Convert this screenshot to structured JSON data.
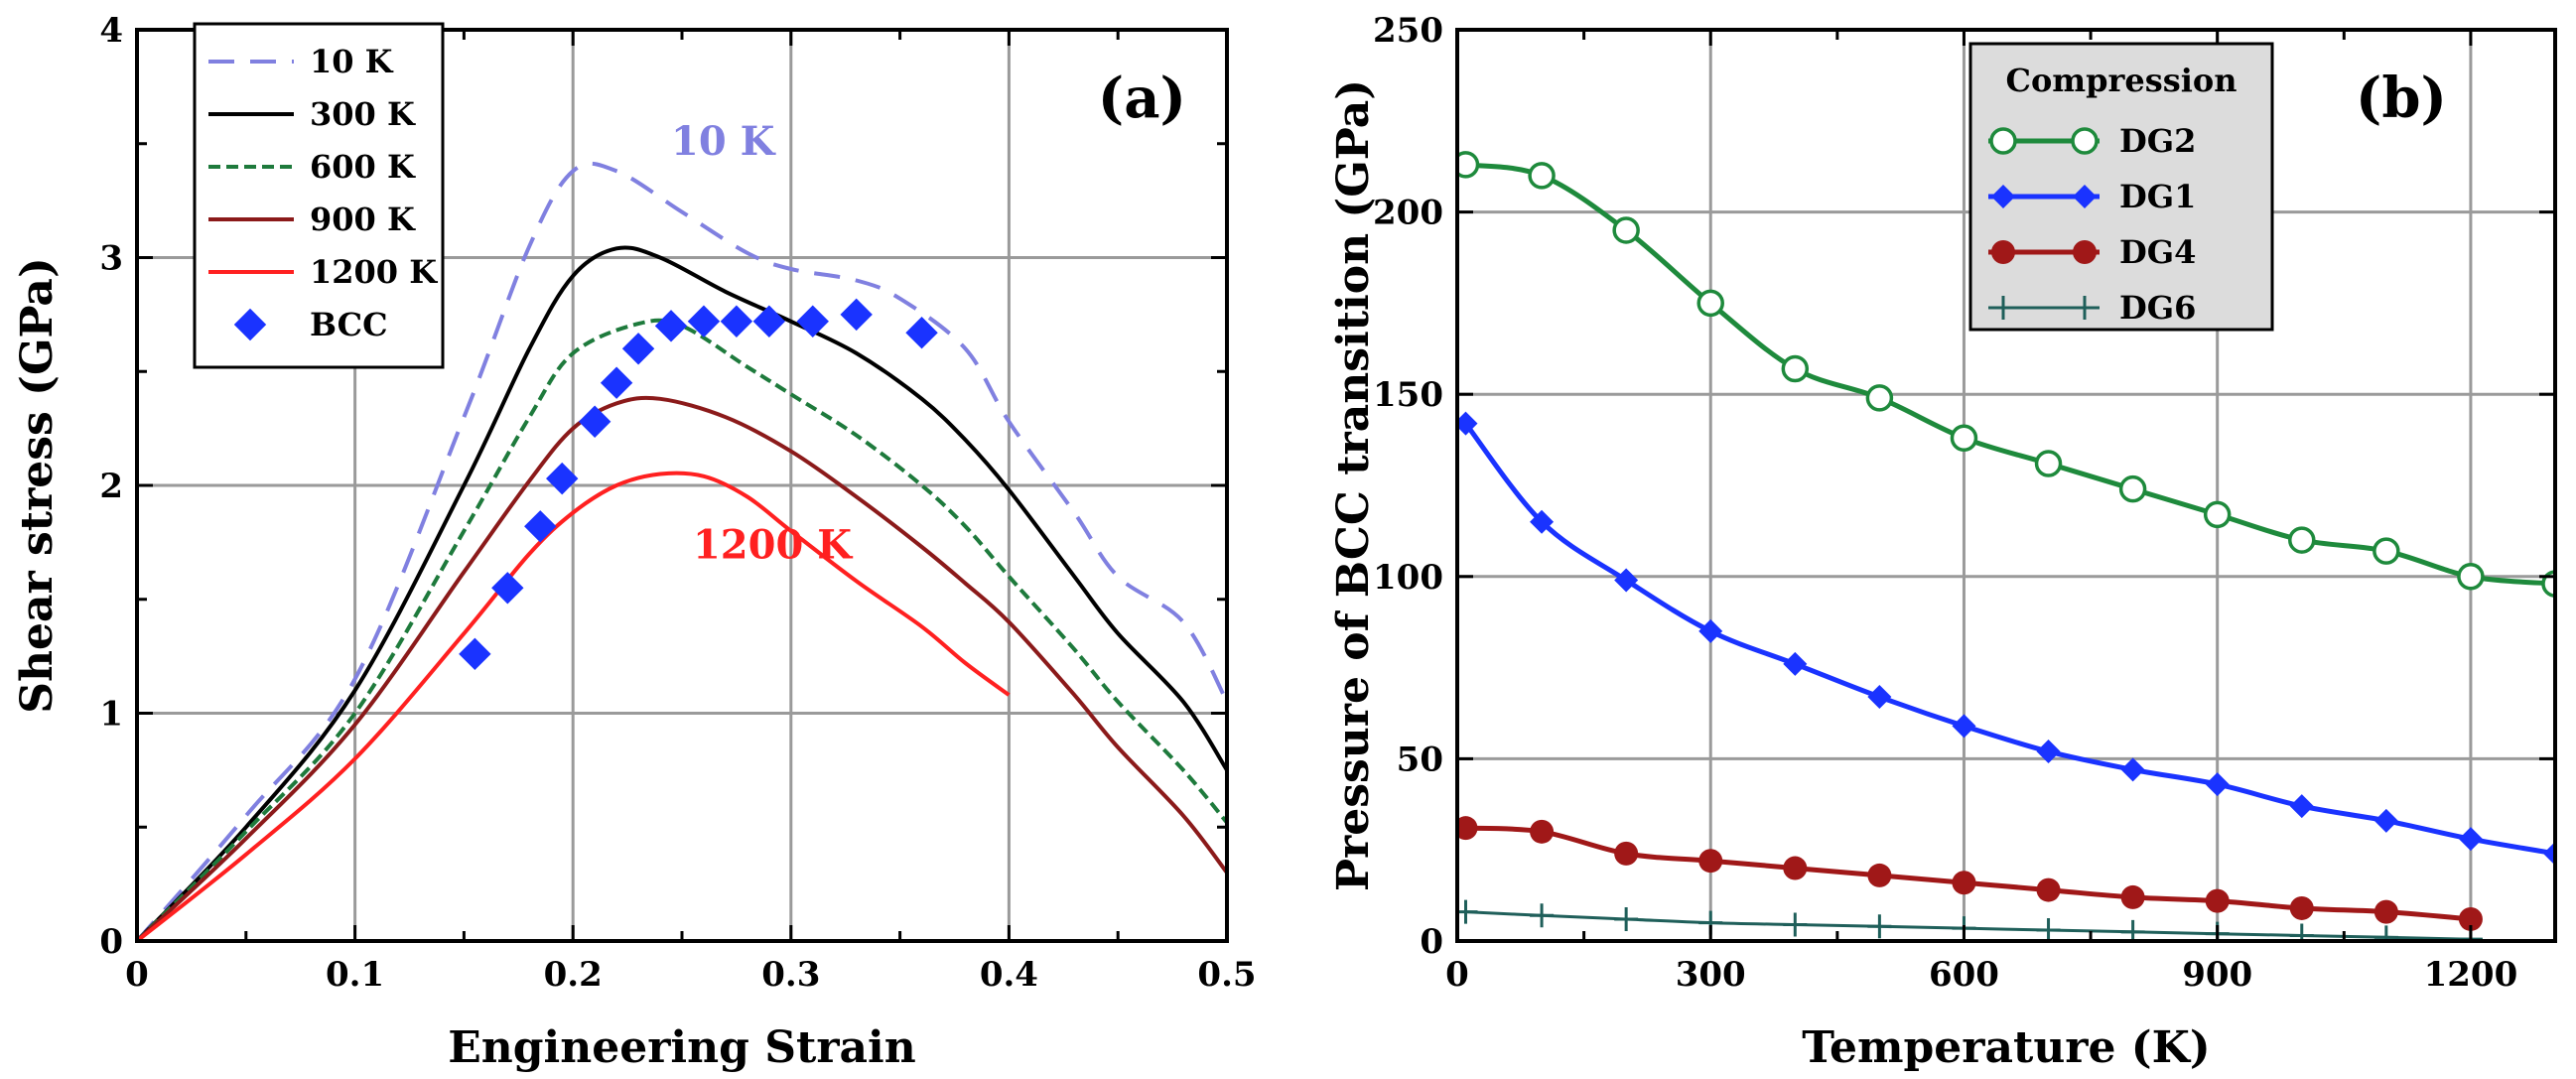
{
  "chart_data": [
    {
      "type": "line",
      "panel_label": "(a)",
      "xlabel": "Engineering Strain",
      "ylabel": "Shear stress (GPa)",
      "xlim": [
        0,
        0.5
      ],
      "ylim": [
        0,
        4
      ],
      "xticks": [
        0,
        0.05,
        0.1,
        0.15,
        0.2,
        0.25,
        0.3,
        0.35,
        0.4,
        0.45,
        0.5
      ],
      "xtick_labels": [
        "0",
        "",
        "0.1",
        "",
        "0.2",
        "",
        "0.3",
        "",
        "0.4",
        "",
        "0.5"
      ],
      "yticks": [
        0,
        0.5,
        1,
        1.5,
        2,
        2.5,
        3,
        3.5,
        4
      ],
      "ytick_labels": [
        "0",
        "",
        "1",
        "",
        "2",
        "",
        "3",
        "",
        "4"
      ],
      "grid": true,
      "legend_position": "top-left",
      "series": [
        {
          "name": "10 K",
          "color": "#8080e0",
          "style": "dashed",
          "x": [
            0,
            0.05,
            0.1,
            0.15,
            0.18,
            0.2,
            0.22,
            0.25,
            0.28,
            0.3,
            0.33,
            0.35,
            0.38,
            0.4,
            0.43,
            0.45,
            0.48,
            0.5
          ],
          "y": [
            0,
            0.55,
            1.15,
            2.3,
            3.05,
            3.38,
            3.38,
            3.2,
            3.02,
            2.95,
            2.9,
            2.82,
            2.6,
            2.28,
            1.88,
            1.6,
            1.4,
            1.05
          ]
        },
        {
          "name": "300 K",
          "color": "#000000",
          "style": "solid",
          "x": [
            0,
            0.05,
            0.1,
            0.15,
            0.18,
            0.2,
            0.22,
            0.24,
            0.27,
            0.3,
            0.33,
            0.36,
            0.38,
            0.4,
            0.43,
            0.45,
            0.48,
            0.5
          ],
          "y": [
            0,
            0.5,
            1.1,
            2.0,
            2.6,
            2.92,
            3.04,
            3.0,
            2.85,
            2.72,
            2.58,
            2.38,
            2.2,
            1.98,
            1.6,
            1.35,
            1.05,
            0.75
          ]
        },
        {
          "name": "600 K",
          "color": "#1e7a3c",
          "style": "dashed",
          "x": [
            0,
            0.05,
            0.1,
            0.15,
            0.18,
            0.2,
            0.23,
            0.25,
            0.28,
            0.3,
            0.33,
            0.36,
            0.38,
            0.4,
            0.43,
            0.45,
            0.48,
            0.5
          ],
          "y": [
            0,
            0.48,
            1.0,
            1.8,
            2.3,
            2.58,
            2.71,
            2.7,
            2.52,
            2.4,
            2.22,
            2.0,
            1.82,
            1.6,
            1.28,
            1.05,
            0.75,
            0.52
          ]
        },
        {
          "name": "900 K",
          "color": "#8b1a1a",
          "style": "solid",
          "x": [
            0,
            0.05,
            0.1,
            0.15,
            0.18,
            0.2,
            0.22,
            0.24,
            0.27,
            0.3,
            0.33,
            0.36,
            0.38,
            0.4,
            0.43,
            0.45,
            0.48,
            0.5
          ],
          "y": [
            0,
            0.45,
            0.95,
            1.62,
            2.02,
            2.25,
            2.36,
            2.38,
            2.3,
            2.15,
            1.95,
            1.73,
            1.57,
            1.4,
            1.08,
            0.85,
            0.55,
            0.3
          ]
        },
        {
          "name": "1200 K",
          "color": "#ff2020",
          "style": "solid",
          "x": [
            0,
            0.05,
            0.1,
            0.15,
            0.18,
            0.2,
            0.22,
            0.24,
            0.26,
            0.28,
            0.3,
            0.33,
            0.36,
            0.38,
            0.4
          ],
          "y": [
            0,
            0.38,
            0.8,
            1.35,
            1.7,
            1.88,
            2.0,
            2.05,
            2.04,
            1.95,
            1.8,
            1.58,
            1.38,
            1.22,
            1.08
          ]
        },
        {
          "name": "BCC",
          "color": "#1a33ff",
          "style": "markers",
          "marker": "diamond",
          "x": [
            0.155,
            0.17,
            0.185,
            0.195,
            0.21,
            0.22,
            0.23,
            0.245,
            0.26,
            0.275,
            0.29,
            0.31,
            0.33,
            0.36
          ],
          "y": [
            1.26,
            1.55,
            1.82,
            2.03,
            2.28,
            2.45,
            2.6,
            2.7,
            2.72,
            2.72,
            2.72,
            2.72,
            2.75,
            2.67
          ]
        }
      ],
      "annotations": [
        {
          "text": "10 K",
          "x": 0.245,
          "y": 3.45,
          "color": "#8080e0"
        },
        {
          "text": "1200 K",
          "x": 0.255,
          "y": 1.68,
          "color": "#ff2020"
        }
      ]
    },
    {
      "type": "line",
      "panel_label": "(b)",
      "xlabel": "Temperature (K)",
      "ylabel": "Pressure of BCC transition (GPa)",
      "xlim": [
        0,
        1300
      ],
      "ylim": [
        0,
        250
      ],
      "xticks": [
        0,
        150,
        300,
        450,
        600,
        750,
        900,
        1050,
        1200
      ],
      "xtick_labels": [
        "0",
        "",
        "300",
        "",
        "600",
        "",
        "900",
        "",
        "1200"
      ],
      "yticks": [
        0,
        50,
        100,
        150,
        200,
        250
      ],
      "ytick_labels": [
        "0",
        "50",
        "100",
        "150",
        "200",
        "250"
      ],
      "grid": true,
      "legend_title": "Compression",
      "legend_position": "top-right",
      "series": [
        {
          "name": "DG2",
          "color": "#1e8a3c",
          "marker": "open-circle",
          "x": [
            10,
            100,
            200,
            300,
            400,
            500,
            600,
            700,
            800,
            900,
            1000,
            1100,
            1200,
            1300
          ],
          "y": [
            213,
            210,
            195,
            175,
            157,
            149,
            138,
            131,
            124,
            117,
            110,
            107,
            100,
            98
          ]
        },
        {
          "name": "DG1",
          "color": "#1a33ff",
          "marker": "diamond",
          "x": [
            10,
            100,
            200,
            300,
            400,
            500,
            600,
            700,
            800,
            900,
            1000,
            1100,
            1200,
            1300
          ],
          "y": [
            142,
            115,
            99,
            85,
            76,
            67,
            59,
            52,
            47,
            43,
            37,
            33,
            28,
            24
          ]
        },
        {
          "name": "DG4",
          "color": "#a01818",
          "marker": "filled-circle",
          "x": [
            10,
            100,
            200,
            300,
            400,
            500,
            600,
            700,
            800,
            900,
            1000,
            1100,
            1200
          ],
          "y": [
            31,
            30,
            24,
            22,
            20,
            18,
            16,
            14,
            12,
            11,
            9,
            8,
            6
          ]
        },
        {
          "name": "DG6",
          "color": "#1f5f5a",
          "marker": "plus",
          "x": [
            10,
            100,
            200,
            300,
            400,
            500,
            600,
            700,
            800,
            900,
            1000,
            1100,
            1200
          ],
          "y": [
            8,
            7,
            6,
            5,
            4.5,
            4,
            3.5,
            3,
            2.5,
            2,
            1.5,
            1,
            0.5
          ]
        }
      ]
    }
  ]
}
